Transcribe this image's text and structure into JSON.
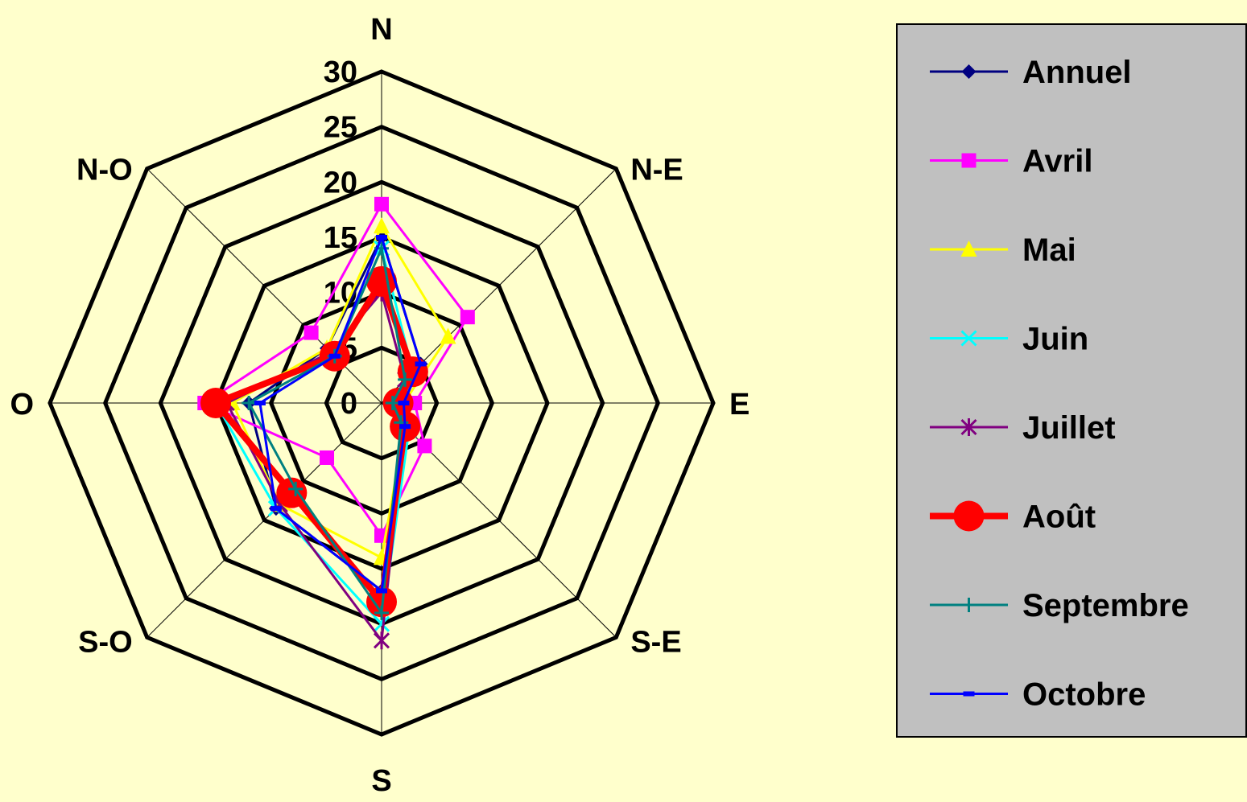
{
  "chart_data": {
    "type": "radar",
    "categories": [
      "N",
      "N-E",
      "E",
      "S-E",
      "S",
      "S-O",
      "O",
      "N-O"
    ],
    "rlim": [
      0,
      30
    ],
    "ticks": [
      0,
      5,
      10,
      15,
      20,
      25,
      30
    ],
    "tick_labels": [
      "0",
      "5",
      "10",
      "15",
      "20",
      "25",
      "30"
    ],
    "grid": true,
    "legend_position": "right",
    "series": [
      {
        "name": "Annuel",
        "color": "#000080",
        "marker": "diamond",
        "values": [
          15,
          5,
          1,
          3,
          17,
          13.5,
          12,
          7
        ]
      },
      {
        "name": "Avril",
        "color": "#FF00FF",
        "marker": "square",
        "values": [
          18,
          11,
          3,
          5.5,
          12,
          7,
          16,
          9
        ]
      },
      {
        "name": "Mai",
        "color": "#FFFF00",
        "marker": "triangle",
        "values": [
          16,
          8.5,
          2,
          3,
          14,
          13,
          13.5,
          7
        ]
      },
      {
        "name": "Juin",
        "color": "#00FFFF",
        "marker": "x",
        "values": [
          14,
          4,
          2,
          3.5,
          20,
          13.5,
          15,
          6
        ]
      },
      {
        "name": "Juillet",
        "color": "#800080",
        "marker": "star",
        "values": [
          10,
          3,
          1,
          3,
          21.5,
          13,
          14,
          6.5
        ]
      },
      {
        "name": "Août",
        "color": "#FF0000",
        "marker": "circle",
        "values": [
          11,
          4,
          1.5,
          3,
          18,
          11.5,
          15,
          6
        ]
      },
      {
        "name": "Septembre",
        "color": "#008080",
        "marker": "plus",
        "values": [
          14,
          3,
          1,
          2.5,
          19,
          11,
          12,
          6
        ]
      },
      {
        "name": "Octobre",
        "color": "#0000FF",
        "marker": "dash",
        "values": [
          15,
          5,
          2,
          3,
          17,
          13.5,
          11,
          6
        ]
      }
    ]
  }
}
